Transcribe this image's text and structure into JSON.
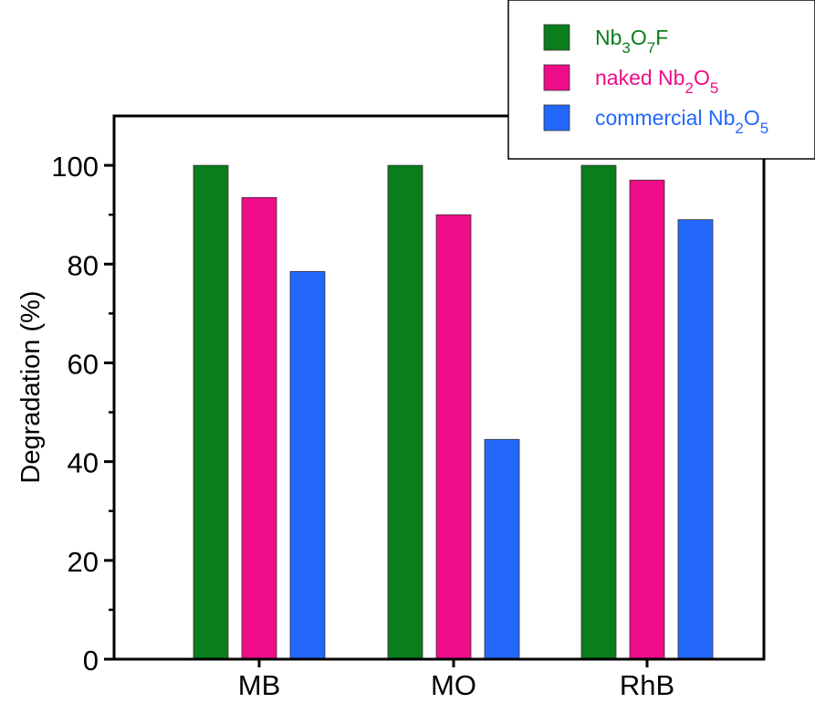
{
  "chart_data": {
    "type": "bar",
    "categories": [
      "MB",
      "MO",
      "RhB"
    ],
    "series": [
      {
        "name": "Nb3O7F",
        "color": "#0a7d1c",
        "values": [
          100,
          100,
          100
        ]
      },
      {
        "name": "naked Nb2O5",
        "color": "#ee0c89",
        "values": [
          93.5,
          90,
          97
        ]
      },
      {
        "name": "commercial Nb2O5",
        "color": "#2367fb",
        "values": [
          78.5,
          44.5,
          89
        ]
      }
    ],
    "legend": [
      {
        "parts": [
          [
            "Nb",
            ""
          ],
          [
            "3",
            "sub"
          ],
          [
            "O",
            ""
          ],
          [
            "7",
            "sub"
          ],
          [
            "F",
            ""
          ]
        ]
      },
      {
        "parts": [
          [
            "naked Nb",
            ""
          ],
          [
            "2",
            "sub"
          ],
          [
            "O",
            ""
          ],
          [
            "5",
            "sub"
          ]
        ]
      },
      {
        "parts": [
          [
            "commercial Nb",
            ""
          ],
          [
            "2",
            "sub"
          ],
          [
            "O",
            ""
          ],
          [
            "5",
            "sub"
          ]
        ]
      }
    ],
    "title": "",
    "xlabel": "",
    "ylabel": "Degradation (%)",
    "ylim": [
      0,
      110
    ],
    "yticks": [
      "0",
      "20",
      "40",
      "60",
      "80",
      "100"
    ],
    "yminor_step": 10,
    "grid": false,
    "legend_position": "top-right"
  }
}
